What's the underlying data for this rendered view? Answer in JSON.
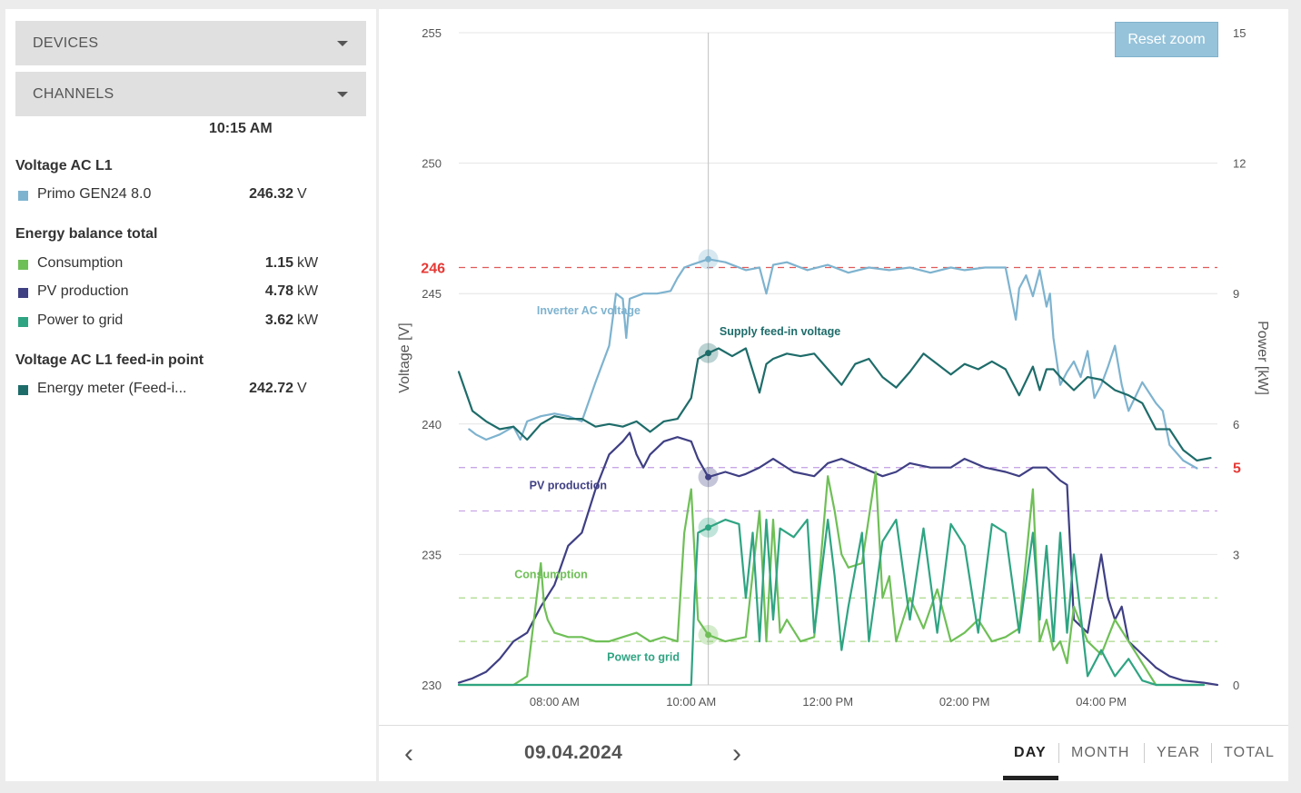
{
  "sidebar": {
    "devices_label": "DEVICES",
    "channels_label": "CHANNELS",
    "time": "10:15 AM",
    "groups": [
      {
        "title": "Voltage AC L1",
        "items": [
          {
            "label": "Primo GEN24 8.0",
            "value": "246.32",
            "unit": "V",
            "color": "#7eb3cf"
          }
        ]
      },
      {
        "title": "Energy balance total",
        "items": [
          {
            "label": "Consumption",
            "value": "1.15",
            "unit": "kW",
            "color": "#6fbf57"
          },
          {
            "label": "PV production",
            "value": "4.78",
            "unit": "kW",
            "color": "#3f3f84"
          },
          {
            "label": "Power to grid",
            "value": "3.62",
            "unit": "kW",
            "color": "#2fa482"
          }
        ]
      },
      {
        "title": "Voltage AC L1 feed-in point",
        "items": [
          {
            "label": "Energy meter (Feed-i...",
            "value": "242.72",
            "unit": "V",
            "color": "#1e6c6a"
          }
        ]
      }
    ]
  },
  "chart": {
    "reset_zoom_label": "Reset zoom"
  },
  "footer": {
    "date": "09.04.2024",
    "prev_icon": "chevron-left-icon",
    "next_icon": "chevron-right-icon",
    "tabs": [
      "DAY",
      "MONTH",
      "YEAR",
      "TOTAL"
    ],
    "active_tab": "DAY"
  },
  "chart_data": {
    "type": "line",
    "ylabel": "Voltage [V]",
    "y2label": "Power [kW]",
    "ylim": [
      230,
      255
    ],
    "y2lim": [
      0,
      15
    ],
    "yticks": [
      230,
      235,
      240,
      245,
      250,
      255
    ],
    "y2ticks": [
      0,
      3,
      6,
      9,
      12,
      15
    ],
    "xticks": [
      "08:00 AM",
      "10:00 AM",
      "12:00 PM",
      "02:00 PM",
      "04:00 PM"
    ],
    "xtick_hours": [
      8,
      10,
      12,
      14,
      16
    ],
    "xlim_hours": [
      6.6,
      17.7
    ],
    "crosshair_hour": 10.25,
    "grid": true,
    "reference_lines": [
      {
        "axis": "left",
        "value": 246,
        "color": "#e05a5a",
        "label": "246"
      },
      {
        "axis": "right",
        "value": 5,
        "color": "#c9a6e6",
        "label": "5"
      },
      {
        "axis": "right",
        "value": 4,
        "color": "#c9a6e6",
        "label": ""
      },
      {
        "axis": "right",
        "value": 2,
        "color": "#a9d98a",
        "label": ""
      },
      {
        "axis": "right",
        "value": 1,
        "color": "#a9d98a",
        "label": ""
      }
    ],
    "series": [
      {
        "name": "Inverter AC voltage",
        "axis": "left",
        "color": "#7eb3cf",
        "label_hour": 8.5,
        "label_value": 244.2,
        "x": [
          6.75,
          6.85,
          7.0,
          7.2,
          7.4,
          7.5,
          7.6,
          7.8,
          8.0,
          8.2,
          8.4,
          8.6,
          8.8,
          8.9,
          9.0,
          9.05,
          9.1,
          9.3,
          9.5,
          9.7,
          9.8,
          9.9,
          10.0,
          10.25,
          10.5,
          10.8,
          11.0,
          11.1,
          11.2,
          11.4,
          11.7,
          12.0,
          12.3,
          12.6,
          12.9,
          13.2,
          13.5,
          13.8,
          14.0,
          14.3,
          14.6,
          14.75,
          14.8,
          14.9,
          15.0,
          15.1,
          15.2,
          15.25,
          15.3,
          15.4,
          15.5,
          15.6,
          15.7,
          15.8,
          15.9,
          16.0,
          16.1,
          16.2,
          16.3,
          16.4,
          16.6,
          16.8,
          16.9,
          17.0,
          17.2,
          17.4
        ],
        "y": [
          239.8,
          239.6,
          239.4,
          239.6,
          239.9,
          239.4,
          240.1,
          240.3,
          240.4,
          240.3,
          240.1,
          241.6,
          243.0,
          245.0,
          244.8,
          243.3,
          244.8,
          245.0,
          245.0,
          245.1,
          245.6,
          246.0,
          246.1,
          246.32,
          246.2,
          245.9,
          246.0,
          245.0,
          246.1,
          246.2,
          245.9,
          246.1,
          245.8,
          246.0,
          245.9,
          246.0,
          245.8,
          246.0,
          245.9,
          246.0,
          246.0,
          244.0,
          245.2,
          245.7,
          244.9,
          245.9,
          244.5,
          245.0,
          243.3,
          241.5,
          242.0,
          242.4,
          241.8,
          242.8,
          241.0,
          241.5,
          242.2,
          243.0,
          241.5,
          240.5,
          241.6,
          240.8,
          240.5,
          239.2,
          238.6,
          238.3
        ]
      },
      {
        "name": "Supply feed-in voltage",
        "axis": "left",
        "color": "#1e6c6a",
        "label_hour": 11.3,
        "label_value": 243.4,
        "x": [
          6.6,
          6.8,
          7.0,
          7.2,
          7.4,
          7.6,
          7.8,
          8.0,
          8.2,
          8.4,
          8.6,
          8.8,
          9.0,
          9.2,
          9.4,
          9.6,
          9.8,
          10.0,
          10.1,
          10.25,
          10.4,
          10.6,
          10.8,
          11.0,
          11.1,
          11.2,
          11.4,
          11.6,
          11.8,
          12.0,
          12.2,
          12.4,
          12.6,
          12.8,
          13.0,
          13.2,
          13.4,
          13.6,
          13.8,
          14.0,
          14.2,
          14.4,
          14.6,
          14.8,
          15.0,
          15.1,
          15.2,
          15.3,
          15.4,
          15.6,
          15.8,
          16.0,
          16.2,
          16.4,
          16.6,
          16.8,
          17.0,
          17.2,
          17.4,
          17.6
        ],
        "y": [
          242.0,
          240.5,
          240.1,
          239.8,
          239.9,
          239.4,
          240.0,
          240.3,
          240.2,
          240.2,
          239.9,
          240.0,
          239.9,
          240.1,
          239.7,
          240.1,
          240.2,
          241.0,
          242.5,
          242.72,
          242.9,
          242.6,
          242.9,
          241.2,
          242.3,
          242.5,
          242.7,
          242.6,
          242.7,
          242.1,
          241.5,
          242.3,
          242.5,
          241.8,
          241.4,
          242.0,
          242.7,
          242.3,
          241.9,
          242.3,
          242.1,
          242.4,
          242.1,
          241.1,
          242.2,
          241.3,
          242.1,
          242.1,
          241.8,
          241.3,
          241.8,
          241.7,
          241.3,
          241.1,
          240.8,
          239.8,
          239.8,
          239.0,
          238.6,
          238.7
        ]
      },
      {
        "name": "PV production",
        "axis": "right",
        "color": "#3f3f84",
        "label_hour": 8.2,
        "label_value": 4.5,
        "x": [
          6.6,
          6.8,
          7.0,
          7.2,
          7.4,
          7.6,
          7.8,
          8.0,
          8.2,
          8.4,
          8.6,
          8.8,
          9.0,
          9.1,
          9.2,
          9.3,
          9.4,
          9.6,
          9.8,
          10.0,
          10.1,
          10.25,
          10.5,
          10.7,
          10.8,
          11.0,
          11.2,
          11.5,
          11.8,
          12.0,
          12.2,
          12.5,
          12.8,
          13.0,
          13.2,
          13.5,
          13.8,
          14.0,
          14.3,
          14.6,
          14.8,
          15.0,
          15.2,
          15.4,
          15.5,
          15.6,
          15.8,
          16.0,
          16.1,
          16.2,
          16.3,
          16.4,
          16.6,
          16.8,
          17.0,
          17.2,
          17.5,
          17.7
        ],
        "y": [
          0.05,
          0.15,
          0.3,
          0.6,
          1.0,
          1.2,
          1.8,
          2.3,
          3.2,
          3.5,
          4.5,
          5.3,
          5.6,
          5.8,
          5.3,
          5.0,
          5.3,
          5.6,
          5.7,
          5.6,
          5.2,
          4.78,
          4.9,
          4.8,
          4.85,
          5.0,
          5.2,
          4.9,
          4.8,
          5.1,
          5.2,
          5.0,
          4.8,
          4.9,
          5.1,
          5.0,
          5.0,
          5.2,
          5.0,
          4.9,
          4.8,
          5.0,
          5.0,
          4.7,
          4.6,
          1.5,
          1.2,
          3.0,
          2.0,
          1.5,
          1.8,
          1.0,
          0.7,
          0.4,
          0.2,
          0.1,
          0.05,
          0.0
        ]
      },
      {
        "name": "Consumption",
        "axis": "right",
        "color": "#6fbf57",
        "label_hour": 7.95,
        "label_value": 2.45,
        "x": [
          6.6,
          7.0,
          7.4,
          7.6,
          7.7,
          7.8,
          7.85,
          7.9,
          8.0,
          8.2,
          8.4,
          8.6,
          8.8,
          9.0,
          9.2,
          9.4,
          9.6,
          9.8,
          9.9,
          10.0,
          10.1,
          10.25,
          10.5,
          10.8,
          11.0,
          11.1,
          11.2,
          11.3,
          11.4,
          11.6,
          11.8,
          12.0,
          12.1,
          12.2,
          12.3,
          12.5,
          12.7,
          12.8,
          12.9,
          13.0,
          13.2,
          13.4,
          13.6,
          13.8,
          14.0,
          14.2,
          14.4,
          14.6,
          14.8,
          15.0,
          15.1,
          15.2,
          15.3,
          15.4,
          15.5,
          15.6,
          15.8,
          16.0,
          16.2,
          16.4,
          16.6,
          16.8,
          17.0,
          17.5
        ],
        "y": [
          0.0,
          0.0,
          0.0,
          0.2,
          1.5,
          2.8,
          1.8,
          1.5,
          1.2,
          1.1,
          1.1,
          1.0,
          1.0,
          1.1,
          1.2,
          1.0,
          1.1,
          1.0,
          3.5,
          4.5,
          1.5,
          1.15,
          1.0,
          1.1,
          4.0,
          1.0,
          3.8,
          1.2,
          1.5,
          1.0,
          1.1,
          4.8,
          4.0,
          3.0,
          2.7,
          2.8,
          4.9,
          2.0,
          2.5,
          1.0,
          2.0,
          1.3,
          2.2,
          1.0,
          1.2,
          1.5,
          1.0,
          1.1,
          1.3,
          4.5,
          1.0,
          1.5,
          0.8,
          1.0,
          0.5,
          1.8,
          1.0,
          0.7,
          1.5,
          1.0,
          0.5,
          0.0,
          0.0,
          0.0
        ]
      },
      {
        "name": "Power to grid",
        "axis": "right",
        "color": "#2fa482",
        "label_hour": 9.3,
        "label_value": 0.55,
        "x": [
          6.6,
          7.0,
          7.5,
          8.0,
          8.5,
          9.0,
          9.5,
          9.9,
          10.0,
          10.05,
          10.1,
          10.25,
          10.5,
          10.7,
          10.8,
          10.9,
          11.0,
          11.1,
          11.2,
          11.3,
          11.5,
          11.7,
          11.8,
          12.0,
          12.1,
          12.2,
          12.3,
          12.5,
          12.6,
          12.8,
          13.0,
          13.2,
          13.4,
          13.6,
          13.8,
          14.0,
          14.2,
          14.4,
          14.6,
          14.8,
          15.0,
          15.1,
          15.2,
          15.3,
          15.4,
          15.5,
          15.6,
          15.8,
          16.0,
          16.2,
          16.4,
          16.6,
          16.8,
          17.0,
          17.5
        ],
        "y": [
          0.0,
          0.0,
          0.0,
          0.0,
          0.0,
          0.0,
          0.0,
          0.0,
          0.0,
          2.0,
          3.5,
          3.62,
          3.8,
          3.7,
          2.0,
          3.5,
          1.0,
          3.8,
          1.5,
          3.6,
          3.4,
          3.8,
          1.2,
          3.8,
          2.5,
          0.8,
          1.8,
          3.5,
          1.0,
          3.3,
          3.8,
          1.5,
          3.6,
          1.2,
          3.7,
          3.2,
          1.2,
          3.7,
          3.5,
          1.2,
          3.5,
          1.5,
          3.2,
          1.0,
          3.5,
          1.2,
          3.0,
          0.2,
          0.8,
          0.2,
          0.6,
          0.1,
          0.0,
          0.0,
          0.0
        ]
      }
    ]
  }
}
